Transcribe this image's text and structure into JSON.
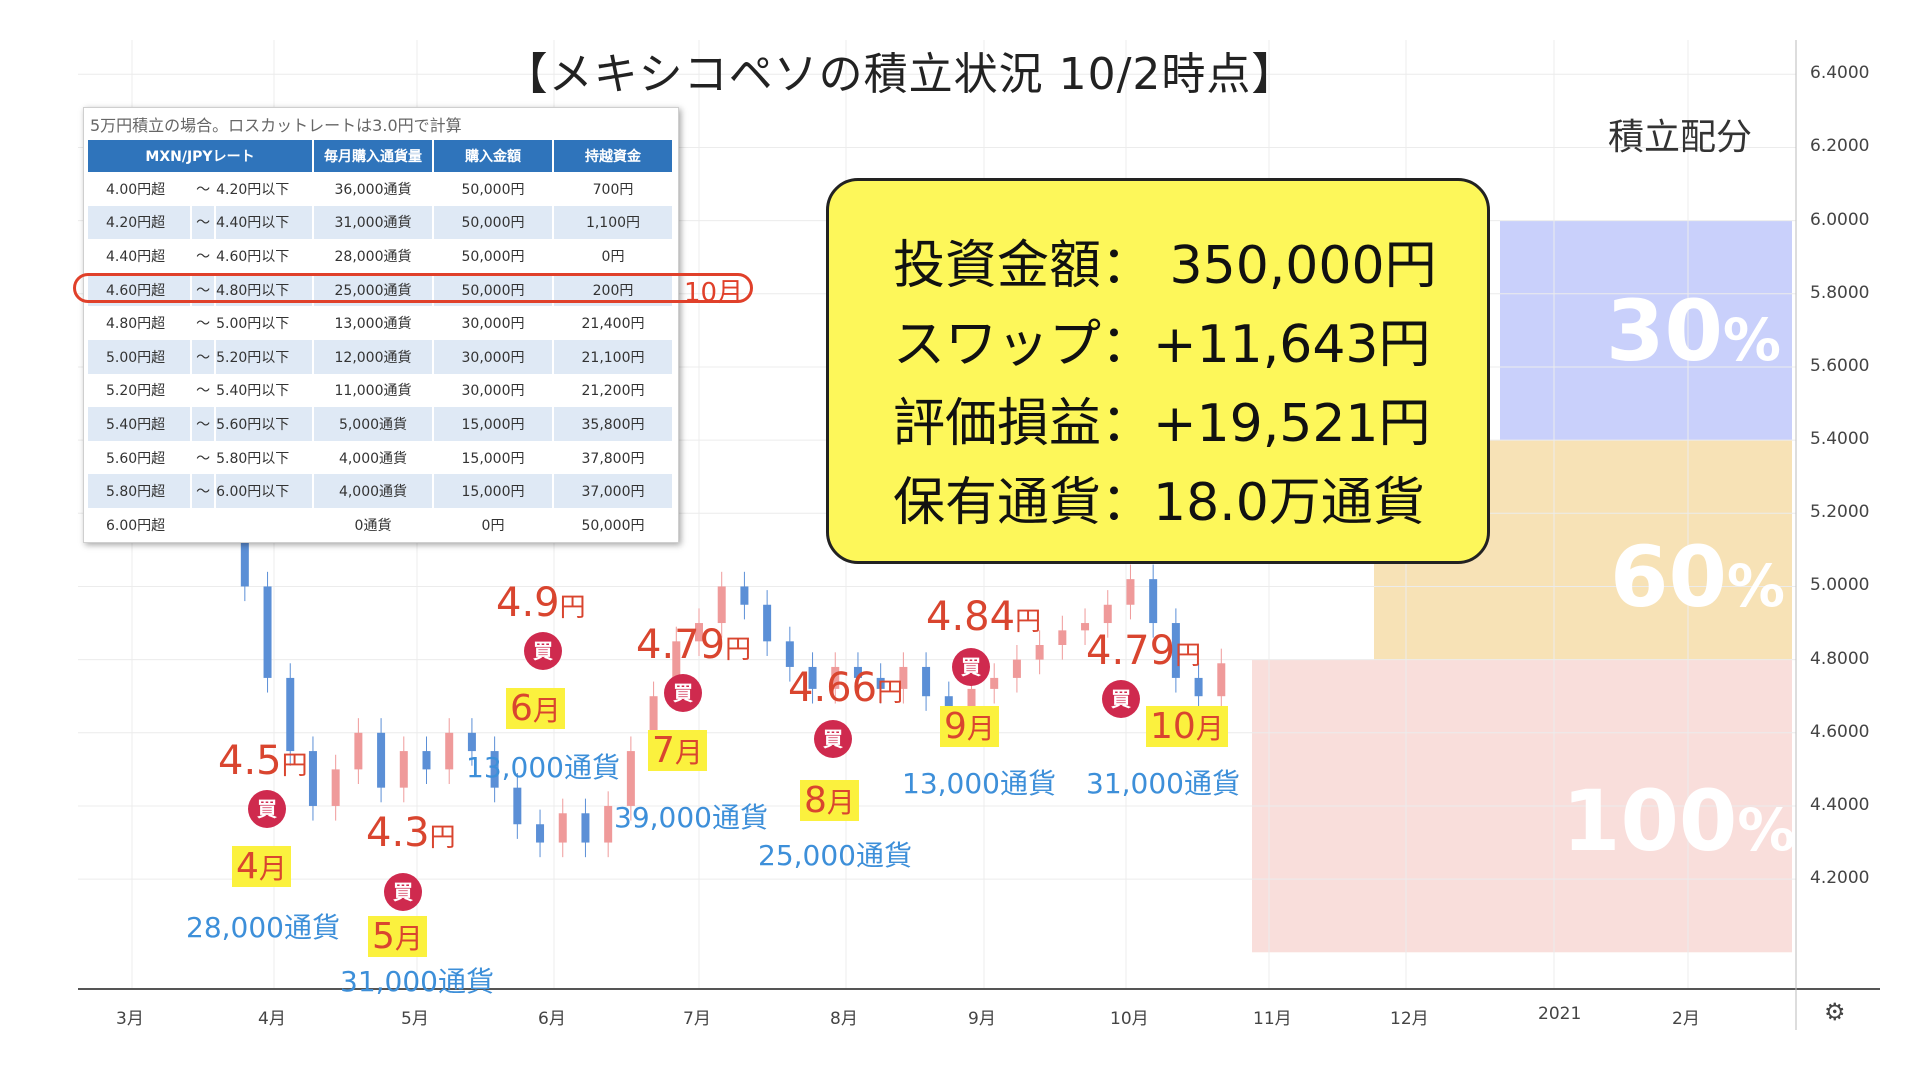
{
  "title": "【メキシコペソの積立状況 10/2時点】",
  "allocation": {
    "title": "積立配分",
    "zones": [
      {
        "label": "30",
        "unit": "%",
        "from": 5.4,
        "to": 6.0,
        "color": "#c9d0fb"
      },
      {
        "label": "60",
        "unit": "%",
        "from": 4.8,
        "to": 5.4,
        "color": "#f7e2b6"
      },
      {
        "label": "100",
        "unit": "%",
        "from": 4.0,
        "to": 4.8,
        "color": "#f9dedb"
      }
    ]
  },
  "table": {
    "note": "5万円積立の場合。ロスカットレートは3.0円で計算",
    "headers": [
      "MXN/JPYレート",
      "毎月購入通貨量",
      "購入金額",
      "持越資金"
    ],
    "rows": [
      {
        "from": "4.00円超",
        "tilde": "～",
        "to": "4.20円以下",
        "qty": "36,000通貨",
        "amount": "50,000円",
        "carry": "700円"
      },
      {
        "from": "4.20円超",
        "tilde": "～",
        "to": "4.40円以下",
        "qty": "31,000通貨",
        "amount": "50,000円",
        "carry": "1,100円"
      },
      {
        "from": "4.40円超",
        "tilde": "～",
        "to": "4.60円以下",
        "qty": "28,000通貨",
        "amount": "50,000円",
        "carry": "0円"
      },
      {
        "from": "4.60円超",
        "tilde": "～",
        "to": "4.80円以下",
        "qty": "25,000通貨",
        "amount": "50,000円",
        "carry": "200円"
      },
      {
        "from": "4.80円超",
        "tilde": "～",
        "to": "5.00円以下",
        "qty": "13,000通貨",
        "amount": "30,000円",
        "carry": "21,400円"
      },
      {
        "from": "5.00円超",
        "tilde": "～",
        "to": "5.20円以下",
        "qty": "12,000通貨",
        "amount": "30,000円",
        "carry": "21,100円"
      },
      {
        "from": "5.20円超",
        "tilde": "～",
        "to": "5.40円以下",
        "qty": "11,000通貨",
        "amount": "30,000円",
        "carry": "21,200円"
      },
      {
        "from": "5.40円超",
        "tilde": "～",
        "to": "5.60円以下",
        "qty": "5,000通貨",
        "amount": "15,000円",
        "carry": "35,800円"
      },
      {
        "from": "5.60円超",
        "tilde": "～",
        "to": "5.80円以下",
        "qty": "4,000通貨",
        "amount": "15,000円",
        "carry": "37,800円"
      },
      {
        "from": "5.80円超",
        "tilde": "～",
        "to": "6.00円以下",
        "qty": "4,000通貨",
        "amount": "15,000円",
        "carry": "37,000円"
      },
      {
        "from": "6.00円超",
        "tilde": "",
        "to": "",
        "qty": "0通貨",
        "amount": "0円",
        "carry": "50,000円"
      }
    ],
    "highlight_label": "10月"
  },
  "summary": {
    "line1": "投資金額： 350,000円",
    "line2": "スワップ：+11,643円",
    "line3": "評価損益：+19,521円",
    "line4": "保有通貨：18.0万通貨"
  },
  "purchases": [
    {
      "price": "4.5",
      "yen": "円",
      "month_num": "4",
      "month_unit": "月",
      "volume": "28,000通貨",
      "buy": "買",
      "rate": 4.5
    },
    {
      "price": "4.3",
      "yen": "円",
      "month_num": "5",
      "month_unit": "月",
      "volume": "31,000通貨",
      "buy": "買",
      "rate": 4.3
    },
    {
      "price": "4.9",
      "yen": "円",
      "month_num": "6",
      "month_unit": "月",
      "volume": "13,000通貨",
      "buy": "買",
      "rate": 4.9
    },
    {
      "price": "4.79",
      "yen": "円",
      "month_num": "7",
      "month_unit": "月",
      "volume": "39,000通貨",
      "buy": "買",
      "rate": 4.79
    },
    {
      "price": "4.66",
      "yen": "円",
      "month_num": "8",
      "month_unit": "月",
      "volume": "25,000通貨",
      "buy": "買",
      "rate": 4.66
    },
    {
      "price": "4.84",
      "yen": "円",
      "month_num": "9",
      "month_unit": "月",
      "volume": "13,000通貨",
      "buy": "買",
      "rate": 4.84
    },
    {
      "price": "4.79",
      "yen": "円",
      "month_num": "10",
      "month_unit": "月",
      "volume": "31,000通貨",
      "buy": "買",
      "rate": 4.79
    }
  ],
  "chart_data": {
    "type": "candlestick",
    "title": "【メキシコペソの積立状況 10/2時点】",
    "y_ticks": [
      "6.4000",
      "6.2000",
      "6.0000",
      "5.8000",
      "5.6000",
      "5.4000",
      "5.2000",
      "5.0000",
      "4.8000",
      "4.6000",
      "4.4000",
      "4.2000"
    ],
    "ylim": [
      4.05,
      6.45
    ],
    "x_ticks": [
      "3月",
      "4月",
      "5月",
      "6月",
      "7月",
      "8月",
      "9月",
      "10月",
      "11月",
      "12月",
      "2021",
      "2月"
    ],
    "closes": [
      5.95,
      5.85,
      5.6,
      5.2,
      5.0,
      4.75,
      4.55,
      4.4,
      4.5,
      4.6,
      4.45,
      4.55,
      4.5,
      4.6,
      4.55,
      4.45,
      4.35,
      4.3,
      4.38,
      4.3,
      4.4,
      4.55,
      4.7,
      4.85,
      4.9,
      5.0,
      4.95,
      4.85,
      4.78,
      4.72,
      4.78,
      4.75,
      4.72,
      4.78,
      4.7,
      4.66,
      4.72,
      4.75,
      4.8,
      4.84,
      4.88,
      4.9,
      4.95,
      5.02,
      4.9,
      4.75,
      4.7,
      4.79
    ],
    "up_color": "#ef9a9a",
    "down_color": "#5b8fd6"
  },
  "settings_icon": "gear-icon"
}
